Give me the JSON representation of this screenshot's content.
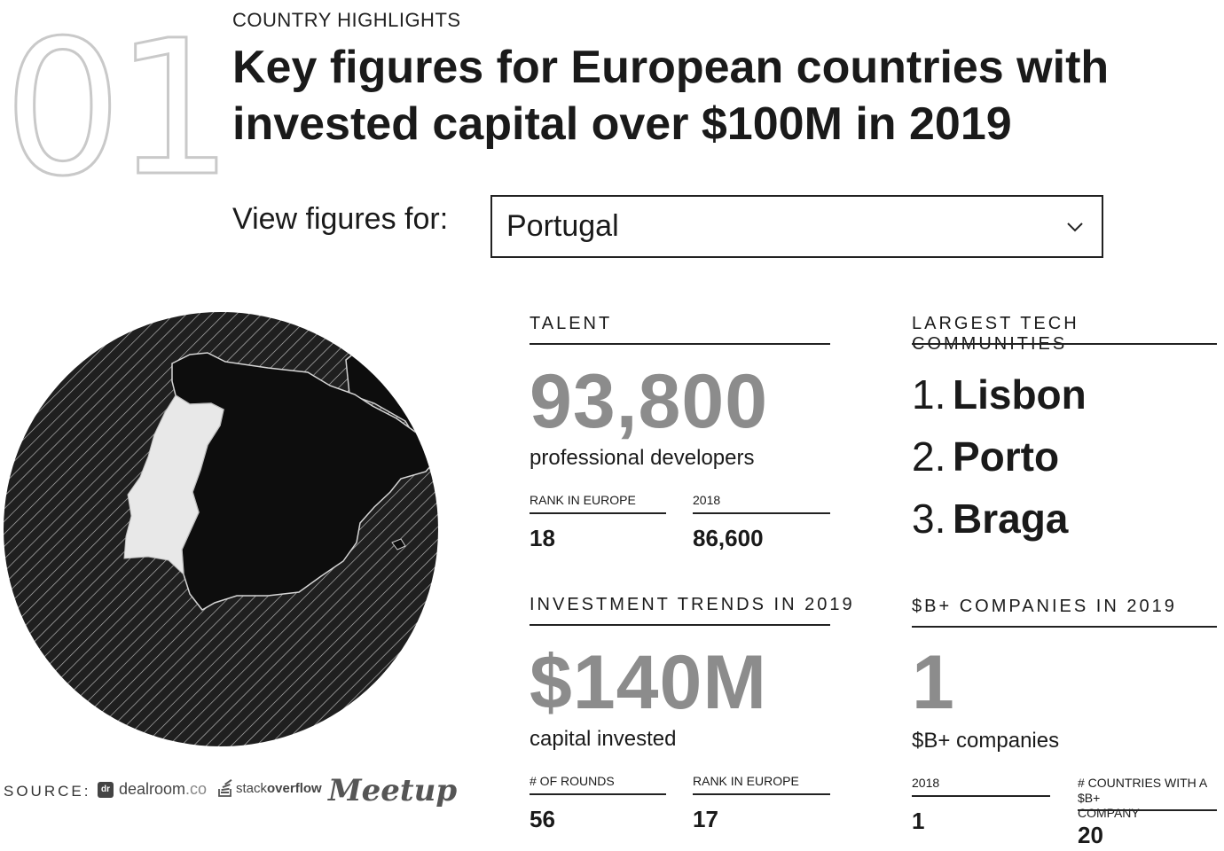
{
  "header": {
    "section_number": "01",
    "eyebrow": "COUNTRY HIGHLIGHTS",
    "title": "Key figures for European countries with invested capital over $100M in 2019"
  },
  "selector": {
    "label": "View figures for:",
    "selected": "Portugal",
    "icon": "chevron-down-icon"
  },
  "map": {
    "icon": "country-map",
    "highlight_color": "#e8e8e8",
    "land_color": "#0d0d0d",
    "sea_color": "#1f1f1f"
  },
  "talent": {
    "label": "TALENT",
    "value": "93,800",
    "caption": "professional developers",
    "rank_label": "RANK IN EUROPE",
    "rank_value": "18",
    "prev_label": "2018",
    "prev_value": "86,600"
  },
  "communities": {
    "label": "LARGEST TECH COMMUNITIES",
    "items": [
      {
        "index": "1.",
        "name": "Lisbon"
      },
      {
        "index": "2.",
        "name": "Porto"
      },
      {
        "index": "3.",
        "name": "Braga"
      }
    ]
  },
  "investment": {
    "label": "INVESTMENT TRENDS IN 2019",
    "value": "$140M",
    "caption": "capital invested",
    "rounds_label": "# OF ROUNDS",
    "rounds_value": "56",
    "rank_label": "RANK IN EUROPE",
    "rank_value": "17"
  },
  "companies": {
    "label": "$B+ COMPANIES IN 2019",
    "value": "1",
    "caption": "$B+ companies",
    "prev_label": "2018",
    "prev_value": "1",
    "countries_label_line1": "# COUNTRIES WITH A $B+",
    "countries_label_line2": "COMPANY",
    "countries_value": "20"
  },
  "sources": {
    "label": "SOURCE:",
    "dealroom_mark": "dr",
    "dealroom_name": "dealroom",
    "dealroom_suffix": ".co",
    "stackoverflow_prefix": "stack",
    "stackoverflow_bold": "overflow",
    "meetup": "Meetup"
  }
}
